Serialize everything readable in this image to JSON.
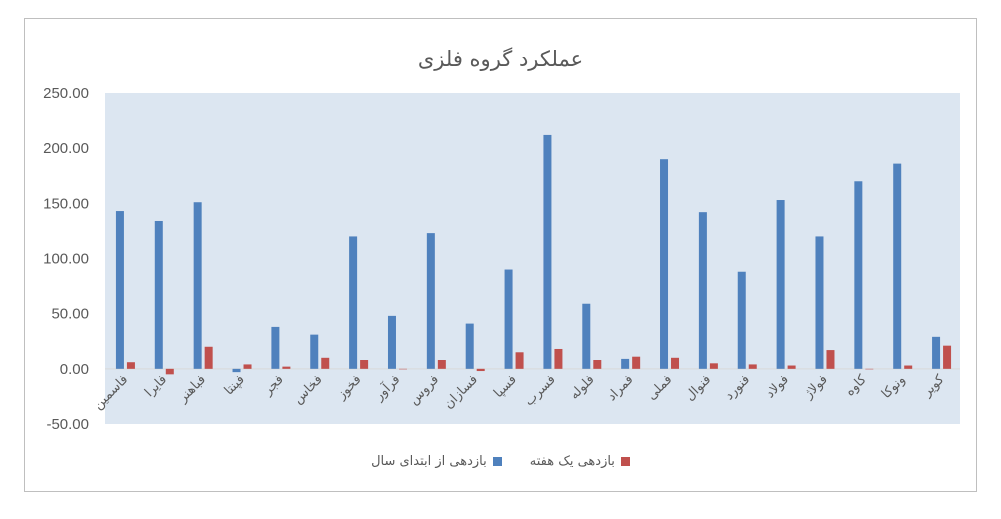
{
  "chart_data": {
    "type": "bar",
    "title": "عملکرد گروه فلزی",
    "categories": [
      "فاسمین",
      "فایرا",
      "فباهنر",
      "فپنتا",
      "فجر",
      "فخاس",
      "فخوز",
      "فرآور",
      "فروس",
      "فسازان",
      "فسپا",
      "فسرب",
      "فلوله",
      "فمراد",
      "فملی",
      "فنوال",
      "فنورد",
      "فولاد",
      "فولاژ",
      "کاوه",
      "ونوکا",
      "کویر"
    ],
    "series": [
      {
        "name": "بازدهی از ابتدای سال",
        "color": "#4f81bd",
        "values": [
          143,
          134,
          151,
          -3,
          38,
          31,
          120,
          48,
          123,
          41,
          90,
          212,
          59,
          9,
          190,
          142,
          88,
          153,
          120,
          170,
          186,
          29
        ]
      },
      {
        "name": "بازدهی یک هفته",
        "color": "#c0504d",
        "values": [
          6,
          -5,
          20,
          4,
          2,
          10,
          8,
          0,
          8,
          -2,
          15,
          18,
          8,
          11,
          10,
          5,
          4,
          3,
          17,
          0,
          3,
          21
        ]
      }
    ],
    "ylim": [
      -50,
      250
    ],
    "yticks": [
      "250.00",
      "200.00",
      "150.00",
      "100.00",
      "50.00",
      "0.00",
      "-50.00"
    ],
    "ytick_values": [
      250,
      200,
      150,
      100,
      50,
      0,
      -50
    ],
    "grid": false,
    "legend_position": "bottom",
    "plot_background": "#dce6f1"
  }
}
